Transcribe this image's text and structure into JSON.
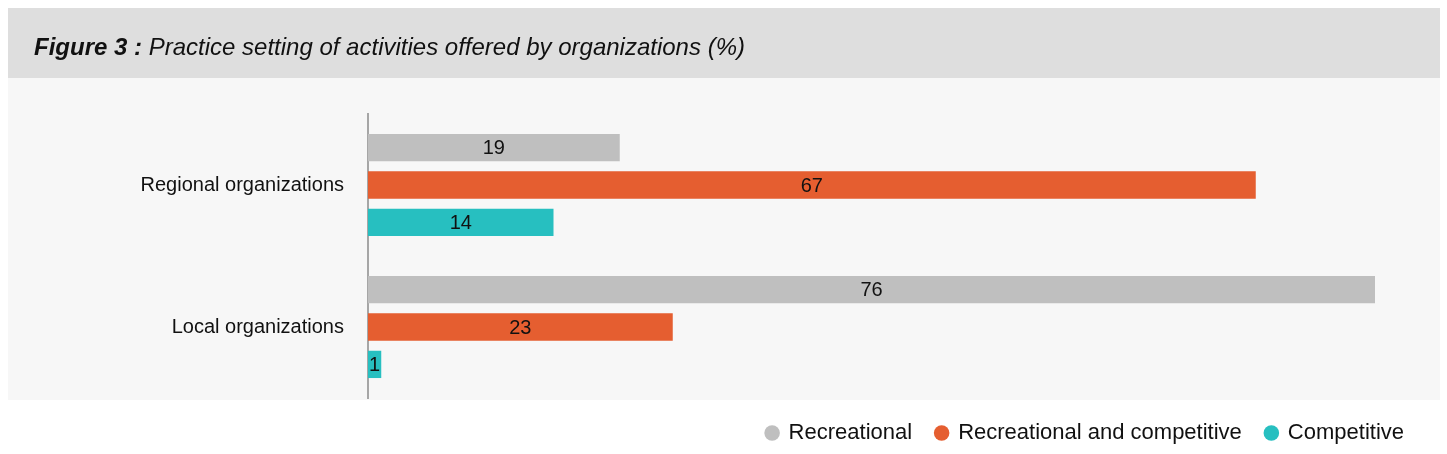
{
  "chart_data": {
    "type": "bar",
    "orientation": "horizontal",
    "title": "Figure 3 : Practice setting of activities offered by organizations (%)",
    "categories": [
      "Regional organizations",
      "Local organizations"
    ],
    "series": [
      {
        "name": "Recreational",
        "color": "#bfbfbf",
        "values": [
          19,
          76
        ]
      },
      {
        "name": "Recreational and competitive",
        "color": "#e55e30",
        "values": [
          67,
          23
        ]
      },
      {
        "name": "Competitive",
        "color": "#27bfc0",
        "values": [
          14,
          1
        ]
      }
    ],
    "data_labels": true,
    "legend": "bottom right"
  }
}
